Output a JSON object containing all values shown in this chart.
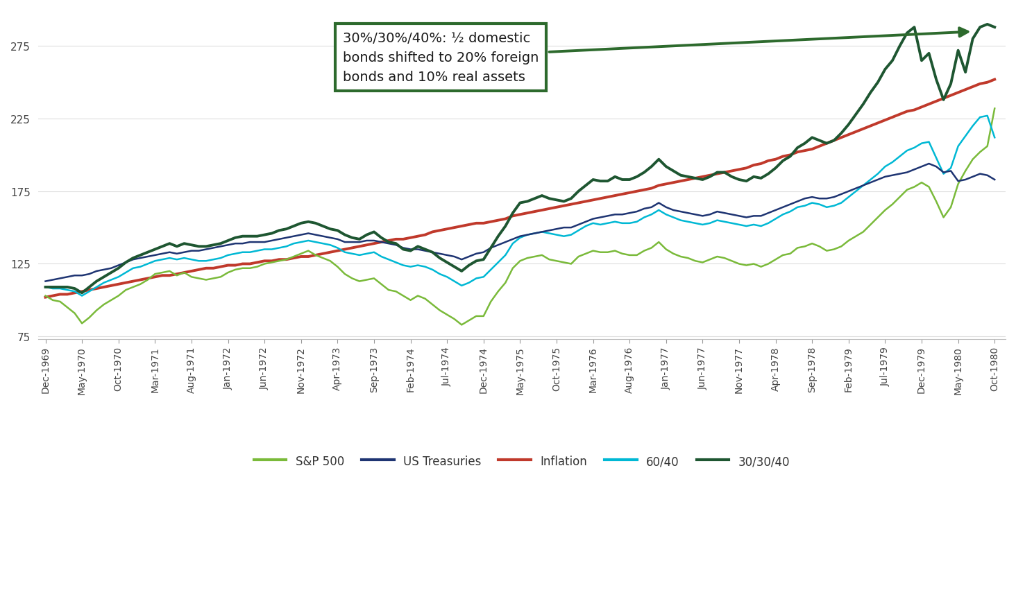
{
  "annotation_text": "30%/30%/40%: ½ domestic\nbonds shifted to 20% foreign\nbonds and 10% real assets",
  "ylim": [
    73,
    300
  ],
  "yticks": [
    75,
    125,
    175,
    225,
    275
  ],
  "colors": {
    "sp500": "#7aba3a",
    "treasuries": "#1e3472",
    "inflation": "#c0392b",
    "6040": "#00b8d4",
    "303040": "#1e5631"
  },
  "legend_labels": [
    "S&P 500",
    "US Treasuries",
    "Inflation",
    "60/40",
    "30/30/40"
  ],
  "annotation_box_color": "#2d6a2d",
  "background_color": "#ffffff",
  "x_dates": [
    "Dec-1969",
    "Jan-1970",
    "Feb-1970",
    "Mar-1970",
    "Apr-1970",
    "May-1970",
    "Jun-1970",
    "Jul-1970",
    "Aug-1970",
    "Sep-1970",
    "Oct-1970",
    "Nov-1970",
    "Dec-1970",
    "Jan-1971",
    "Feb-1971",
    "Mar-1971",
    "Apr-1971",
    "May-1971",
    "Jun-1971",
    "Jul-1971",
    "Aug-1971",
    "Sep-1971",
    "Oct-1971",
    "Nov-1971",
    "Dec-1971",
    "Jan-1972",
    "Feb-1972",
    "Mar-1972",
    "Apr-1972",
    "May-1972",
    "Jun-1972",
    "Jul-1972",
    "Aug-1972",
    "Sep-1972",
    "Oct-1972",
    "Nov-1972",
    "Dec-1972",
    "Jan-1973",
    "Feb-1973",
    "Mar-1973",
    "Apr-1973",
    "May-1973",
    "Jun-1973",
    "Jul-1973",
    "Aug-1973",
    "Sep-1973",
    "Oct-1973",
    "Nov-1973",
    "Dec-1973",
    "Jan-1974",
    "Feb-1974",
    "Mar-1974",
    "Apr-1974",
    "May-1974",
    "Jun-1974",
    "Jul-1974",
    "Aug-1974",
    "Sep-1974",
    "Oct-1974",
    "Nov-1974",
    "Dec-1974",
    "Jan-1975",
    "Feb-1975",
    "Mar-1975",
    "Apr-1975",
    "May-1975",
    "Jun-1975",
    "Jul-1975",
    "Aug-1975",
    "Sep-1975",
    "Oct-1975",
    "Nov-1975",
    "Dec-1975",
    "Jan-1976",
    "Feb-1976",
    "Mar-1976",
    "Apr-1976",
    "May-1976",
    "Jun-1976",
    "Jul-1976",
    "Aug-1976",
    "Sep-1976",
    "Oct-1976",
    "Nov-1976",
    "Dec-1976",
    "Jan-1977",
    "Feb-1977",
    "Mar-1977",
    "Apr-1977",
    "May-1977",
    "Jun-1977",
    "Jul-1977",
    "Aug-1977",
    "Sep-1977",
    "Oct-1977",
    "Nov-1977",
    "Dec-1977",
    "Jan-1978",
    "Feb-1978",
    "Mar-1978",
    "Apr-1978",
    "May-1978",
    "Jun-1978",
    "Jul-1978",
    "Aug-1978",
    "Sep-1978",
    "Oct-1978",
    "Nov-1978",
    "Dec-1978",
    "Jan-1979",
    "Feb-1979",
    "Mar-1979",
    "Apr-1979",
    "May-1979",
    "Jun-1979",
    "Jul-1979",
    "Aug-1979",
    "Sep-1979",
    "Oct-1979",
    "Nov-1979",
    "Dec-1979",
    "Jan-1980",
    "Feb-1980",
    "Mar-1980",
    "Apr-1980",
    "May-1980",
    "Jun-1980",
    "Jul-1980",
    "Aug-1980",
    "Sep-1980",
    "Oct-1980"
  ],
  "x_labels_shown": [
    "Dec-1969",
    "May-1970",
    "Oct-1970",
    "Mar-1971",
    "Aug-1971",
    "Jan-1972",
    "Jun-1972",
    "Nov-1972",
    "Apr-1973",
    "Sep-1973",
    "Feb-1974",
    "Jul-1974",
    "Dec-1974",
    "May-1975",
    "Oct-1975",
    "Mar-1976",
    "Aug-1976",
    "Jan-1977",
    "Jun-1977",
    "Nov-1977",
    "Apr-1978",
    "Sep-1978",
    "Feb-1979",
    "Jul-1979",
    "Dec-1979",
    "May-1980",
    "Oct-1980"
  ],
  "sp500": [
    103,
    100,
    99,
    95,
    91,
    84,
    88,
    93,
    97,
    100,
    103,
    107,
    109,
    111,
    114,
    118,
    119,
    120,
    117,
    119,
    116,
    115,
    114,
    115,
    116,
    119,
    121,
    122,
    122,
    123,
    125,
    126,
    127,
    128,
    130,
    132,
    134,
    131,
    129,
    127,
    123,
    118,
    115,
    113,
    114,
    115,
    111,
    107,
    106,
    103,
    100,
    103,
    101,
    97,
    93,
    90,
    87,
    83,
    86,
    89,
    89,
    99,
    106,
    112,
    122,
    127,
    129,
    130,
    131,
    128,
    127,
    126,
    125,
    130,
    132,
    134,
    133,
    133,
    134,
    132,
    131,
    131,
    134,
    136,
    140,
    135,
    132,
    130,
    129,
    127,
    126,
    128,
    130,
    129,
    127,
    125,
    124,
    125,
    123,
    125,
    128,
    131,
    132,
    136,
    137,
    139,
    137,
    134,
    135,
    137,
    141,
    144,
    147,
    152,
    157,
    162,
    166,
    171,
    176,
    178,
    181,
    178,
    168,
    157,
    164,
    180,
    189,
    197,
    202,
    206,
    232
  ],
  "treasuries": [
    113,
    114,
    115,
    116,
    117,
    117,
    118,
    120,
    121,
    122,
    124,
    126,
    128,
    129,
    130,
    131,
    132,
    133,
    132,
    133,
    134,
    134,
    135,
    136,
    137,
    138,
    139,
    139,
    140,
    140,
    140,
    141,
    142,
    143,
    144,
    145,
    146,
    145,
    144,
    143,
    142,
    140,
    140,
    140,
    141,
    141,
    140,
    139,
    138,
    136,
    135,
    135,
    134,
    133,
    132,
    131,
    130,
    128,
    130,
    132,
    133,
    136,
    138,
    140,
    142,
    144,
    145,
    146,
    147,
    148,
    149,
    150,
    150,
    152,
    154,
    156,
    157,
    158,
    159,
    159,
    160,
    161,
    163,
    164,
    167,
    164,
    162,
    161,
    160,
    159,
    158,
    159,
    161,
    160,
    159,
    158,
    157,
    158,
    158,
    160,
    162,
    164,
    166,
    168,
    170,
    171,
    170,
    170,
    171,
    173,
    175,
    177,
    179,
    181,
    183,
    185,
    186,
    187,
    188,
    190,
    192,
    194,
    192,
    188,
    189,
    182,
    183,
    185,
    187,
    186,
    183
  ],
  "inflation": [
    102,
    103,
    104,
    104,
    105,
    106,
    107,
    108,
    109,
    110,
    111,
    112,
    113,
    114,
    115,
    116,
    117,
    117,
    118,
    119,
    120,
    121,
    122,
    122,
    123,
    124,
    124,
    125,
    125,
    126,
    127,
    127,
    128,
    128,
    129,
    130,
    130,
    131,
    132,
    133,
    134,
    135,
    136,
    137,
    138,
    139,
    140,
    141,
    142,
    142,
    143,
    144,
    145,
    147,
    148,
    149,
    150,
    151,
    152,
    153,
    153,
    154,
    155,
    156,
    158,
    159,
    160,
    161,
    162,
    163,
    164,
    165,
    166,
    167,
    168,
    169,
    170,
    171,
    172,
    173,
    174,
    175,
    176,
    177,
    179,
    180,
    181,
    182,
    183,
    184,
    185,
    186,
    187,
    188,
    189,
    190,
    191,
    193,
    194,
    196,
    197,
    199,
    200,
    202,
    203,
    204,
    206,
    208,
    210,
    212,
    214,
    216,
    218,
    220,
    222,
    224,
    226,
    228,
    230,
    231,
    233,
    235,
    237,
    239,
    241,
    243,
    245,
    247,
    249,
    250,
    252
  ],
  "s6040": [
    109,
    108,
    108,
    107,
    106,
    103,
    106,
    109,
    112,
    114,
    116,
    119,
    122,
    123,
    125,
    127,
    128,
    129,
    128,
    129,
    128,
    127,
    127,
    128,
    129,
    131,
    132,
    133,
    133,
    134,
    135,
    135,
    136,
    137,
    139,
    140,
    141,
    140,
    139,
    138,
    136,
    133,
    132,
    131,
    132,
    133,
    130,
    128,
    126,
    124,
    123,
    124,
    123,
    121,
    118,
    116,
    113,
    110,
    112,
    115,
    116,
    121,
    126,
    131,
    139,
    143,
    145,
    146,
    147,
    146,
    145,
    144,
    145,
    148,
    151,
    153,
    152,
    153,
    154,
    153,
    153,
    154,
    157,
    159,
    162,
    159,
    157,
    155,
    154,
    153,
    152,
    153,
    155,
    154,
    153,
    152,
    151,
    152,
    151,
    153,
    156,
    159,
    161,
    164,
    165,
    167,
    166,
    164,
    165,
    167,
    171,
    175,
    179,
    183,
    187,
    192,
    195,
    199,
    203,
    205,
    208,
    209,
    198,
    187,
    191,
    206,
    213,
    220,
    226,
    227,
    212
  ],
  "s303040": [
    109,
    109,
    109,
    109,
    108,
    105,
    109,
    113,
    116,
    119,
    122,
    126,
    129,
    131,
    133,
    135,
    137,
    139,
    137,
    139,
    138,
    137,
    137,
    138,
    139,
    141,
    143,
    144,
    144,
    144,
    145,
    146,
    148,
    149,
    151,
    153,
    154,
    153,
    151,
    149,
    148,
    145,
    143,
    142,
    145,
    147,
    143,
    140,
    139,
    135,
    134,
    137,
    135,
    133,
    129,
    126,
    123,
    120,
    124,
    127,
    128,
    136,
    144,
    151,
    160,
    167,
    168,
    170,
    172,
    170,
    169,
    168,
    170,
    175,
    179,
    183,
    182,
    182,
    185,
    183,
    183,
    185,
    188,
    192,
    197,
    192,
    189,
    186,
    185,
    184,
    183,
    185,
    188,
    188,
    185,
    183,
    182,
    185,
    184,
    187,
    191,
    196,
    199,
    205,
    208,
    212,
    210,
    208,
    210,
    215,
    221,
    228,
    235,
    243,
    250,
    259,
    265,
    275,
    284,
    288,
    265,
    270,
    252,
    238,
    249,
    272,
    257,
    280,
    288,
    290,
    288
  ]
}
